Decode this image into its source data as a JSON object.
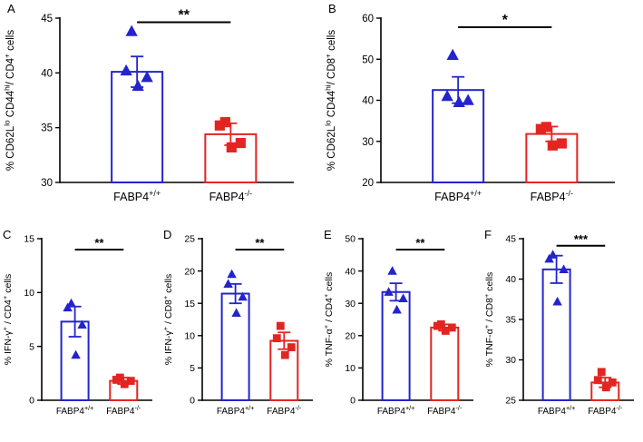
{
  "chart_data": {
    "type": "bar",
    "chart_style": "bars with individual scatter points, mean ± SEM error bars, significance brackets",
    "colors": {
      "blue": "#2424cd",
      "red": "#e32522",
      "axis": "#000000"
    },
    "x_categories": [
      "FABP4^{+/+}",
      "FABP4^{-/-}"
    ],
    "panels": [
      {
        "letter": "A",
        "ylabel": "% CD62L^{lo} CD44^{hi}/ CD4^{+} cells",
        "ylim": [
          30,
          45
        ],
        "yticks": [
          30,
          35,
          40,
          45
        ],
        "sig": "**",
        "groups": [
          {
            "label": "FABP4^{+/+}",
            "color": "blue",
            "marker": "triangle",
            "mean": 40.1,
            "sem": 1.4,
            "points": [
              43.8,
              40.2,
              39.6,
              38.8
            ]
          },
          {
            "label": "FABP4^{-/-}",
            "color": "red",
            "marker": "square",
            "mean": 34.4,
            "sem": 1.0,
            "points": [
              35.5,
              35.2,
              33.6,
              33.2
            ]
          }
        ]
      },
      {
        "letter": "B",
        "ylabel": "% CD62L^{lo} CD44^{hi}/ CD8^{+} cells",
        "ylim": [
          20,
          60
        ],
        "yticks": [
          20,
          30,
          40,
          50,
          60
        ],
        "sig": "*",
        "groups": [
          {
            "label": "FABP4^{+/+}",
            "color": "blue",
            "marker": "triangle",
            "mean": 42.5,
            "sem": 3.2,
            "points": [
              51,
              41,
              40,
              39.5
            ]
          },
          {
            "label": "FABP4^{-/-}",
            "color": "red",
            "marker": "square",
            "mean": 31.8,
            "sem": 1.8,
            "points": [
              33.5,
              33,
              29.5,
              29
            ]
          }
        ]
      },
      {
        "letter": "C",
        "ylabel": "% IFN-γ^{+} / CD4^{+} cells",
        "ylim": [
          0,
          15
        ],
        "yticks": [
          0,
          5,
          10,
          15
        ],
        "sig": "**",
        "groups": [
          {
            "label": "FABP4^{+/+}",
            "color": "blue",
            "marker": "triangle",
            "mean": 7.3,
            "sem": 1.4,
            "points": [
              9.0,
              8.6,
              7.0,
              4.2
            ]
          },
          {
            "label": "FABP4^{-/-}",
            "color": "red",
            "marker": "square",
            "mean": 1.8,
            "sem": 0.3,
            "points": [
              2.1,
              1.9,
              1.8,
              1.5
            ]
          }
        ]
      },
      {
        "letter": "D",
        "ylabel": "% IFN-γ^{+} / CD8^{+} cells",
        "ylim": [
          0,
          25
        ],
        "yticks": [
          0,
          5,
          10,
          15,
          20,
          25
        ],
        "sig": "**",
        "groups": [
          {
            "label": "FABP4^{+/+}",
            "color": "blue",
            "marker": "triangle",
            "mean": 16.5,
            "sem": 1.5,
            "points": [
              19.5,
              18,
              16,
              13.5
            ]
          },
          {
            "label": "FABP4^{-/-}",
            "color": "red",
            "marker": "square",
            "mean": 9.2,
            "sem": 1.3,
            "points": [
              11.5,
              9.6,
              8.2,
              7.0
            ]
          }
        ]
      },
      {
        "letter": "E",
        "ylabel": "% TNF-α^{+} / CD4^{+} cells",
        "ylim": [
          0,
          50
        ],
        "yticks": [
          0,
          10,
          20,
          30,
          40,
          50
        ],
        "sig": "**",
        "groups": [
          {
            "label": "FABP4^{+/+}",
            "color": "blue",
            "marker": "triangle",
            "mean": 33.5,
            "sem": 2.7,
            "points": [
              40,
              33.5,
              31.5,
              28
            ]
          },
          {
            "label": "FABP4^{-/-}",
            "color": "red",
            "marker": "square",
            "mean": 22.5,
            "sem": 1.0,
            "points": [
              23.5,
              23,
              22.5,
              21.5
            ]
          }
        ]
      },
      {
        "letter": "F",
        "ylabel": "% TNF-α^{+} / CD8^{+} cells",
        "ylim": [
          25,
          45
        ],
        "yticks": [
          25,
          30,
          35,
          40,
          45
        ],
        "sig": "***",
        "groups": [
          {
            "label": "FABP4^{+/+}",
            "color": "blue",
            "marker": "triangle",
            "mean": 41.2,
            "sem": 1.7,
            "points": [
              43,
              42.5,
              41.2,
              37.2
            ]
          },
          {
            "label": "FABP4^{-/-}",
            "color": "red",
            "marker": "square",
            "mean": 27.2,
            "sem": 0.6,
            "points": [
              28.5,
              27.5,
              27.2,
              26.6
            ]
          }
        ]
      }
    ]
  }
}
